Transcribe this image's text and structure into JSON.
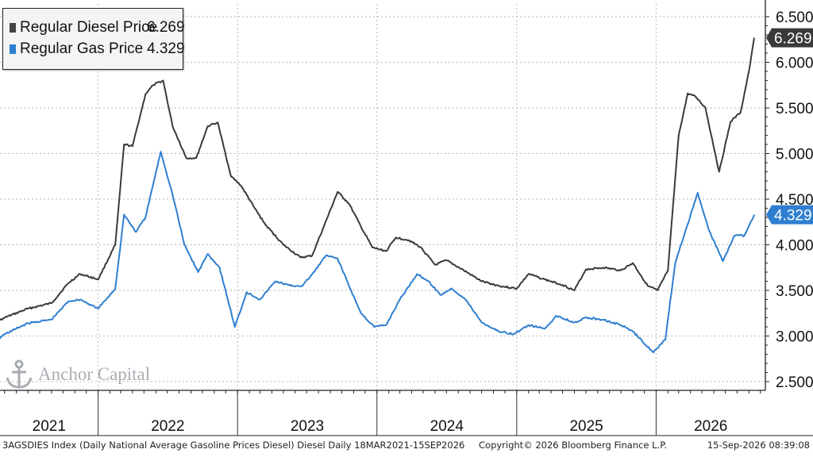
{
  "chart_data": {
    "type": "line",
    "x_ticks": [
      "2021",
      "2022",
      "2023",
      "2024",
      "2025",
      "2026"
    ],
    "y_ticks": [
      "6.500",
      "6.000",
      "5.500",
      "5.000",
      "4.500",
      "4.000",
      "3.500",
      "3.000",
      "2.500"
    ],
    "ylim": [
      2.35,
      6.6
    ],
    "grid": true,
    "legend_position": "top-left",
    "series": [
      {
        "name": "Regular Diesel Price",
        "last_value_label": "6.269",
        "color": "#3a3a3a",
        "points": [
          [
            "2021-03-18",
            3.1
          ],
          [
            "2021-05-01",
            3.2
          ],
          [
            "2021-07-01",
            3.3
          ],
          [
            "2021-09-01",
            3.36
          ],
          [
            "2021-10-15",
            3.58
          ],
          [
            "2021-11-15",
            3.68
          ],
          [
            "2022-01-01",
            3.62
          ],
          [
            "2022-02-15",
            4.0
          ],
          [
            "2022-03-10",
            5.1
          ],
          [
            "2022-04-01",
            5.08
          ],
          [
            "2022-05-05",
            5.65
          ],
          [
            "2022-05-25",
            5.75
          ],
          [
            "2022-06-20",
            5.8
          ],
          [
            "2022-07-15",
            5.3
          ],
          [
            "2022-08-20",
            4.95
          ],
          [
            "2022-09-15",
            4.95
          ],
          [
            "2022-10-15",
            5.3
          ],
          [
            "2022-11-10",
            5.34
          ],
          [
            "2022-12-15",
            4.75
          ],
          [
            "2023-01-10",
            4.65
          ],
          [
            "2023-02-15",
            4.4
          ],
          [
            "2023-03-15",
            4.22
          ],
          [
            "2023-05-01",
            4.0
          ],
          [
            "2023-06-15",
            3.86
          ],
          [
            "2023-07-15",
            3.88
          ],
          [
            "2023-08-15",
            4.2
          ],
          [
            "2023-09-20",
            4.58
          ],
          [
            "2023-10-20",
            4.45
          ],
          [
            "2023-11-20",
            4.2
          ],
          [
            "2023-12-20",
            3.97
          ],
          [
            "2024-01-25",
            3.93
          ],
          [
            "2024-02-20",
            4.08
          ],
          [
            "2024-03-25",
            4.05
          ],
          [
            "2024-04-25",
            3.97
          ],
          [
            "2024-06-01",
            3.78
          ],
          [
            "2024-07-01",
            3.83
          ],
          [
            "2024-08-15",
            3.72
          ],
          [
            "2024-10-01",
            3.6
          ],
          [
            "2024-11-15",
            3.55
          ],
          [
            "2025-01-01",
            3.52
          ],
          [
            "2025-02-01",
            3.68
          ],
          [
            "2025-03-15",
            3.62
          ],
          [
            "2025-05-01",
            3.56
          ],
          [
            "2025-06-01",
            3.5
          ],
          [
            "2025-07-01",
            3.73
          ],
          [
            "2025-08-15",
            3.75
          ],
          [
            "2025-10-01",
            3.72
          ],
          [
            "2025-11-01",
            3.8
          ],
          [
            "2025-12-10",
            3.55
          ],
          [
            "2026-01-05",
            3.5
          ],
          [
            "2026-02-01",
            3.72
          ],
          [
            "2026-03-01",
            5.2
          ],
          [
            "2026-03-25",
            5.66
          ],
          [
            "2026-04-15",
            5.62
          ],
          [
            "2026-05-10",
            5.5
          ],
          [
            "2026-06-15",
            4.8
          ],
          [
            "2026-07-15",
            5.35
          ],
          [
            "2026-08-10",
            5.45
          ],
          [
            "2026-09-01",
            5.9
          ],
          [
            "2026-09-15",
            6.269
          ]
        ]
      },
      {
        "name": "Regular Gas Price",
        "last_value_label": "4.329",
        "color": "#2f7fd0",
        "points": [
          [
            "2021-03-18",
            2.86
          ],
          [
            "2021-05-01",
            3.02
          ],
          [
            "2021-07-01",
            3.14
          ],
          [
            "2021-09-01",
            3.18
          ],
          [
            "2021-10-15",
            3.38
          ],
          [
            "2021-11-15",
            3.4
          ],
          [
            "2022-01-01",
            3.3
          ],
          [
            "2022-02-15",
            3.52
          ],
          [
            "2022-03-10",
            4.33
          ],
          [
            "2022-04-10",
            4.14
          ],
          [
            "2022-05-05",
            4.3
          ],
          [
            "2022-06-14",
            5.02
          ],
          [
            "2022-07-15",
            4.55
          ],
          [
            "2022-08-15",
            4.0
          ],
          [
            "2022-09-20",
            3.7
          ],
          [
            "2022-10-15",
            3.9
          ],
          [
            "2022-11-15",
            3.75
          ],
          [
            "2022-12-25",
            3.1
          ],
          [
            "2023-01-25",
            3.48
          ],
          [
            "2023-03-01",
            3.4
          ],
          [
            "2023-04-10",
            3.6
          ],
          [
            "2023-05-20",
            3.55
          ],
          [
            "2023-06-20",
            3.55
          ],
          [
            "2023-07-20",
            3.7
          ],
          [
            "2023-08-20",
            3.88
          ],
          [
            "2023-09-20",
            3.85
          ],
          [
            "2023-10-20",
            3.55
          ],
          [
            "2023-11-20",
            3.25
          ],
          [
            "2023-12-25",
            3.1
          ],
          [
            "2024-01-25",
            3.12
          ],
          [
            "2024-03-01",
            3.4
          ],
          [
            "2024-04-15",
            3.68
          ],
          [
            "2024-05-15",
            3.6
          ],
          [
            "2024-06-15",
            3.45
          ],
          [
            "2024-07-15",
            3.52
          ],
          [
            "2024-08-20",
            3.4
          ],
          [
            "2024-10-01",
            3.15
          ],
          [
            "2024-11-15",
            3.05
          ],
          [
            "2024-12-25",
            3.02
          ],
          [
            "2025-02-01",
            3.12
          ],
          [
            "2025-03-15",
            3.08
          ],
          [
            "2025-04-15",
            3.22
          ],
          [
            "2025-06-01",
            3.15
          ],
          [
            "2025-07-01",
            3.2
          ],
          [
            "2025-08-15",
            3.18
          ],
          [
            "2025-10-01",
            3.12
          ],
          [
            "2025-11-01",
            3.05
          ],
          [
            "2025-12-25",
            2.82
          ],
          [
            "2026-01-25",
            2.96
          ],
          [
            "2026-02-20",
            3.8
          ],
          [
            "2026-03-15",
            4.1
          ],
          [
            "2026-04-20",
            4.57
          ],
          [
            "2026-05-20",
            4.15
          ],
          [
            "2026-06-25",
            3.82
          ],
          [
            "2026-07-25",
            4.1
          ],
          [
            "2026-08-20",
            4.1
          ],
          [
            "2026-09-15",
            4.329
          ]
        ]
      }
    ]
  },
  "legend": {
    "items": [
      {
        "label": "Regular Diesel Price",
        "value": "6.269",
        "color": "#444444"
      },
      {
        "label": "Regular Gas Price",
        "value": "4.329",
        "color": "#2f7fd0"
      }
    ]
  },
  "watermark": {
    "text": "Anchor Capital"
  },
  "footer": {
    "source": "3AGSDIES Index (Daily National Average Gasoline Prices Diesel) Diesel Daily 18MAR2021-15SEP2026",
    "copyright": "Copyright© 2026 Bloomberg Finance L.P.",
    "timestamp": "15-Sep-2026 08:39:08"
  }
}
